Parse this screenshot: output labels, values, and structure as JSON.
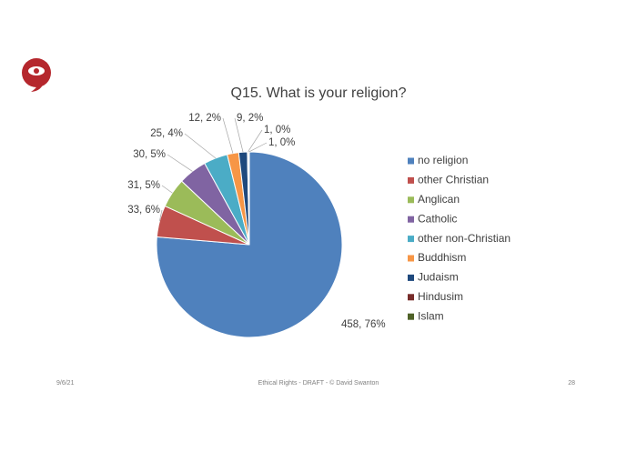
{
  "chart_data": {
    "type": "pie",
    "title": "Q15. What is your religion?",
    "categories": [
      "no religion",
      "other Christian",
      "Anglican",
      "Catholic",
      "other non-Christian",
      "Buddhism",
      "Judaism",
      "Hindusim",
      "Islam"
    ],
    "values": [
      458,
      33,
      31,
      30,
      25,
      12,
      9,
      1,
      1
    ],
    "value_labels": [
      "458, 76%",
      "33, 6%",
      "31, 5%",
      "30, 5%",
      "25, 4%",
      "12, 2%",
      "9, 2%",
      "1, 0%",
      "1, 0%"
    ],
    "colors": [
      "#4f81bd",
      "#c0504d",
      "#9bbb59",
      "#8064a2",
      "#4bacc6",
      "#f79646",
      "#1f497d",
      "#772c2a",
      "#4f6228"
    ],
    "legend": "right"
  },
  "footer": {
    "date": "9/6/21",
    "center": "Ethical Rights  -  DRAFT  -  © David Swanton",
    "page": "28"
  }
}
